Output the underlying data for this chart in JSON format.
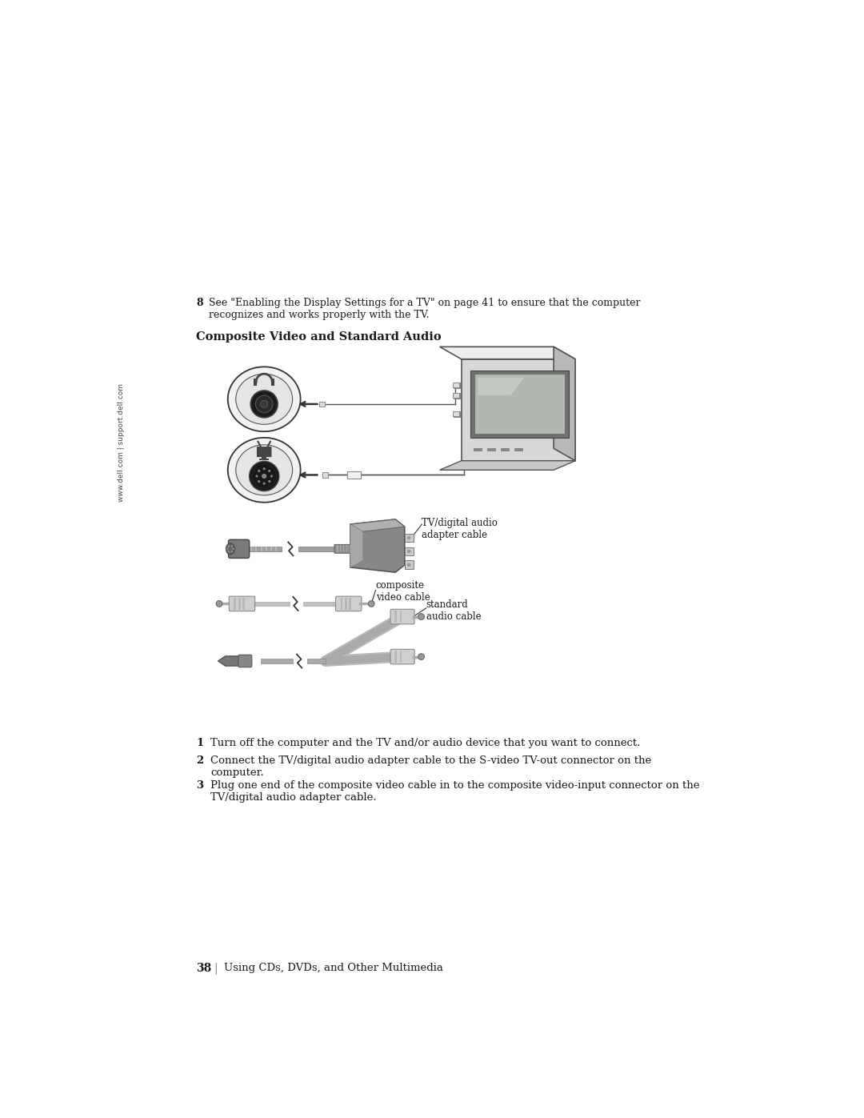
{
  "bg_color": "#ffffff",
  "page_width": 10.8,
  "page_height": 13.97,
  "sidebar_text": "www.dell.com | support.dell.com",
  "step8_bold": "8",
  "step8_text": "See \"Enabling the Display Settings for a TV\" on page 41 to ensure that the computer\nrecognizes and works properly with the TV.",
  "section_title": "Composite Video and Standard Audio",
  "step1_bold": "1",
  "step1_text": "Turn off the computer and the TV and/or audio device that you want to connect.",
  "step2_bold": "2",
  "step2_text": "Connect the TV/digital audio adapter cable to the S-video TV-out connector on the\ncomputer.",
  "step3_bold": "3",
  "step3_text": "Plug one end of the composite video cable in to the composite video-input connector on the\nTV/digital audio adapter cable.",
  "footer_bold": "38",
  "footer_text": "Using CDs, DVDs, and Other Multimedia",
  "label_tv_audio": "TV/digital audio\nadapter cable",
  "label_composite": "composite\nvideo cable",
  "label_standard": "standard\naudio cable",
  "text_color": "#1a1a1a"
}
